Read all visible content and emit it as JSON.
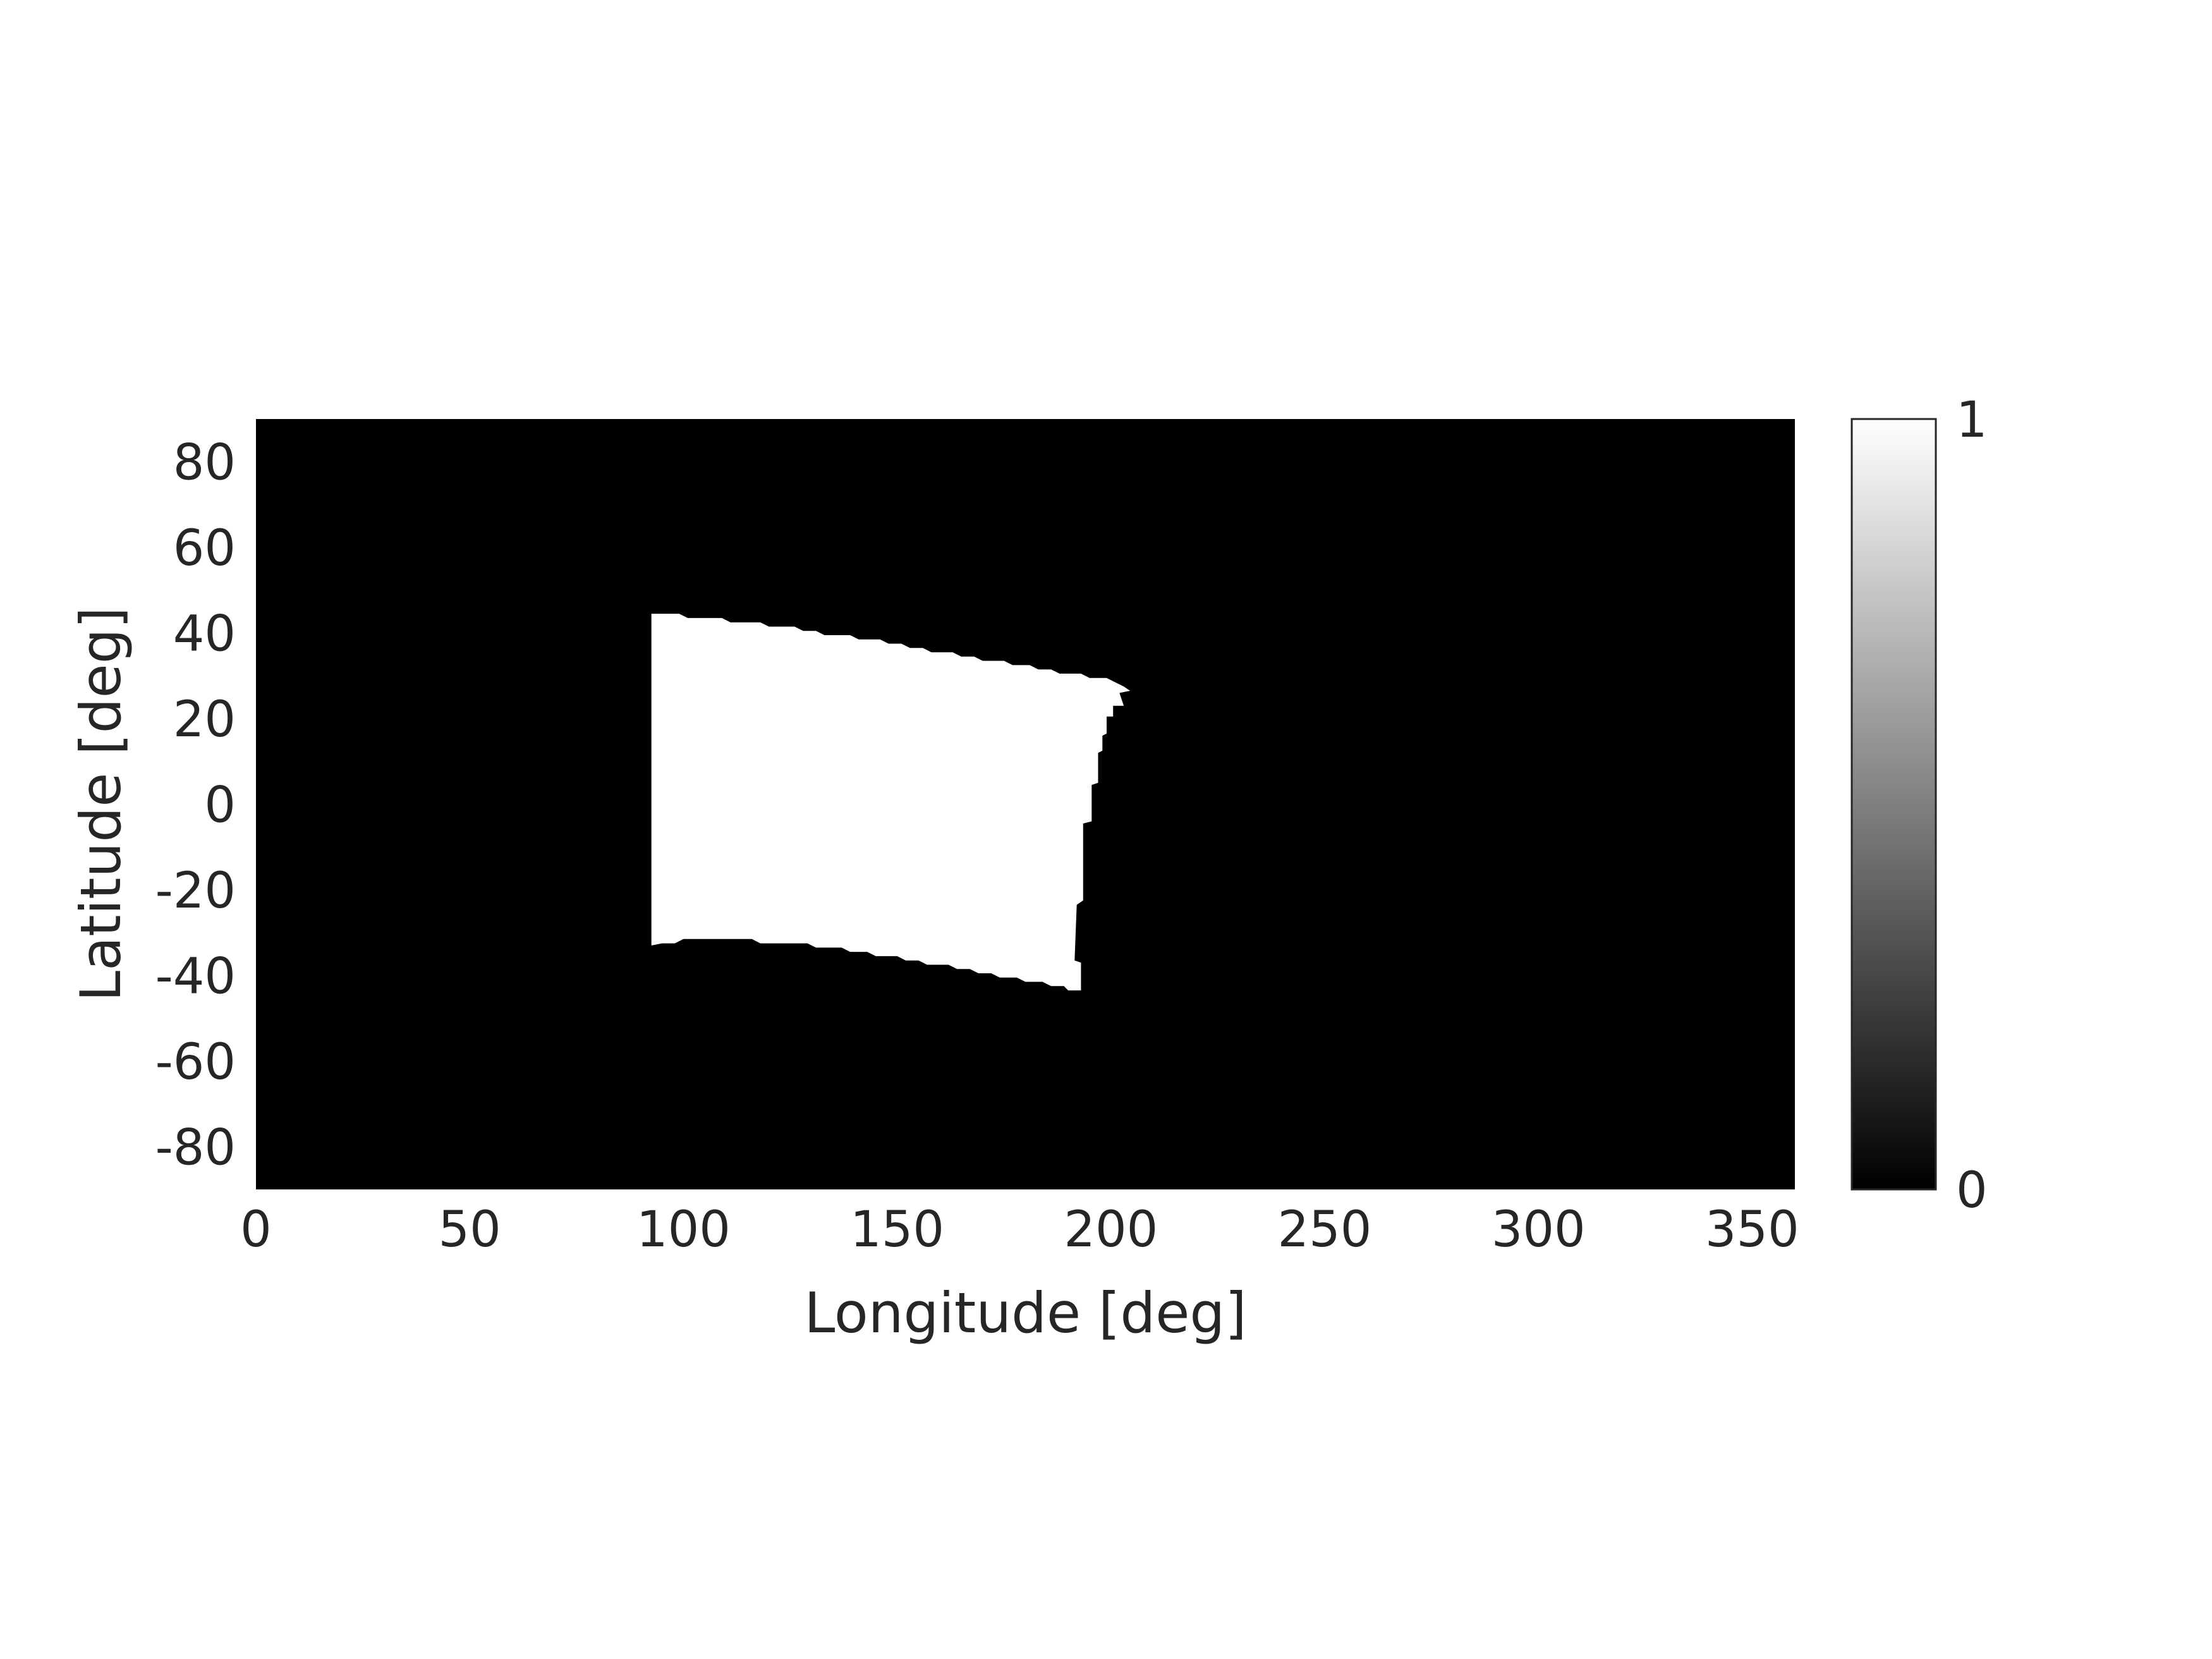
{
  "chart_data": {
    "type": "heatmap",
    "title": "",
    "xlabel": "Longitude [deg]",
    "ylabel": "Latitude [deg]",
    "xlim": [
      0,
      360
    ],
    "ylim": [
      -90,
      90
    ],
    "xticks": [
      0,
      50,
      100,
      150,
      200,
      250,
      300,
      350
    ],
    "yticks": [
      80,
      60,
      40,
      20,
      0,
      -20,
      -40,
      -60,
      -80
    ],
    "xtick_labels": [
      "0",
      "50",
      "100",
      "150",
      "200",
      "250",
      "300",
      "350"
    ],
    "ytick_labels": [
      "80",
      "60",
      "40",
      "20",
      "0",
      "-20",
      "-40",
      "-60",
      "-80"
    ],
    "grid": false,
    "colormap": "gray",
    "background_value": 0,
    "region_value": 1,
    "colorbar": {
      "min": 0,
      "max": 1,
      "ticks": [
        1,
        0
      ],
      "tick_labels": [
        "1",
        "0"
      ]
    },
    "region_polygon_lon_lat": [
      [
        92.5,
        44.5
      ],
      [
        99,
        44.5
      ],
      [
        101,
        43.5
      ],
      [
        109,
        43.5
      ],
      [
        111,
        42.5
      ],
      [
        118,
        42.5
      ],
      [
        120,
        41.5
      ],
      [
        126,
        41.5
      ],
      [
        128,
        40.5
      ],
      [
        131,
        40.5
      ],
      [
        133,
        39.5
      ],
      [
        139,
        39.5
      ],
      [
        141,
        38.5
      ],
      [
        146,
        38.5
      ],
      [
        148,
        37.5
      ],
      [
        151,
        37.5
      ],
      [
        153,
        36.5
      ],
      [
        156,
        36.5
      ],
      [
        158,
        35.5
      ],
      [
        163,
        35.5
      ],
      [
        165,
        34.5
      ],
      [
        168,
        34.5
      ],
      [
        170,
        33.5
      ],
      [
        175,
        33.5
      ],
      [
        177,
        32.5
      ],
      [
        181,
        32.5
      ],
      [
        183,
        31.5
      ],
      [
        186,
        31.5
      ],
      [
        188,
        30.5
      ],
      [
        193,
        30.5
      ],
      [
        195,
        29.5
      ],
      [
        199,
        29.5
      ],
      [
        201,
        28.5
      ],
      [
        203,
        27.5
      ],
      [
        204.5,
        26.5
      ],
      [
        202,
        26
      ],
      [
        203,
        23
      ],
      [
        200.5,
        23
      ],
      [
        200.5,
        20.5
      ],
      [
        199,
        20.5
      ],
      [
        199,
        16.5
      ],
      [
        198,
        16
      ],
      [
        198,
        12.5
      ],
      [
        197,
        12
      ],
      [
        197,
        5
      ],
      [
        195.5,
        4.5
      ],
      [
        195.5,
        -4
      ],
      [
        193.5,
        -4.5
      ],
      [
        193.5,
        -22.5
      ],
      [
        192,
        -23.5
      ],
      [
        191.5,
        -36.5
      ],
      [
        193,
        -37
      ],
      [
        193,
        -43.5
      ],
      [
        190,
        -43.5
      ],
      [
        189,
        -42.5
      ],
      [
        186,
        -42.5
      ],
      [
        184,
        -41.5
      ],
      [
        180,
        -41.5
      ],
      [
        178,
        -40.5
      ],
      [
        174,
        -40.5
      ],
      [
        172,
        -39.5
      ],
      [
        169,
        -39.5
      ],
      [
        167,
        -38.5
      ],
      [
        164,
        -38.5
      ],
      [
        162,
        -37.5
      ],
      [
        157,
        -37.5
      ],
      [
        155,
        -36.5
      ],
      [
        152,
        -36.5
      ],
      [
        150,
        -35.5
      ],
      [
        145,
        -35.5
      ],
      [
        143,
        -34.5
      ],
      [
        139,
        -34.5
      ],
      [
        137,
        -33.5
      ],
      [
        131,
        -33.5
      ],
      [
        129,
        -32.5
      ],
      [
        118,
        -32.5
      ],
      [
        116,
        -31.5
      ],
      [
        100,
        -31.5
      ],
      [
        98,
        -32.5
      ],
      [
        95,
        -32.5
      ],
      [
        92.5,
        -33
      ]
    ]
  }
}
